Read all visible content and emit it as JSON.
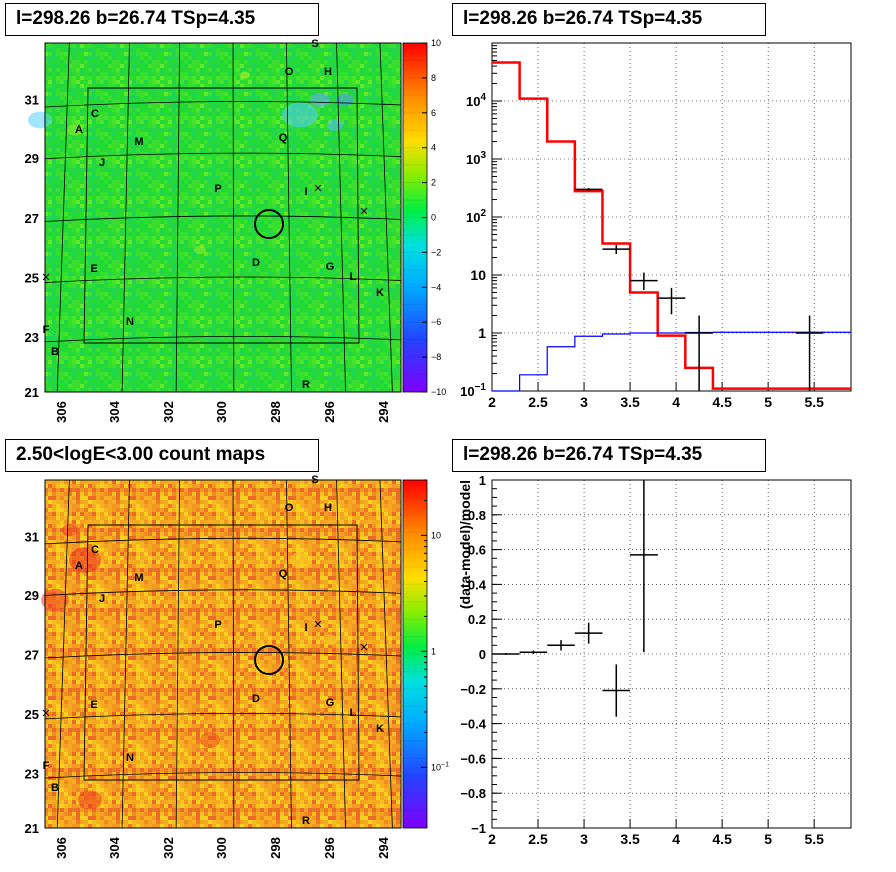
{
  "panels": {
    "tl_title": "l=298.26 b=26.74 TSp=4.35",
    "tr_title": "l=298.26 b=26.74 TSp=4.35",
    "bl_title": "2.50<logE<3.00 count maps",
    "br_title": "l=298.26 b=26.74 TSp=4.35"
  },
  "chart_data": [
    {
      "type": "heatmap",
      "panel": "top-left",
      "title": "l=298.26 b=26.74 TSp=4.35",
      "x_ticks": [
        "306",
        "304",
        "302",
        "300",
        "298",
        "296",
        "294"
      ],
      "y_ticks": [
        "31",
        "29",
        "27",
        "25",
        "23",
        "21"
      ],
      "colorbar_ticks": [
        "10",
        "8",
        "6",
        "4",
        "2",
        "0",
        "−2",
        "−4",
        "−6",
        "−8",
        "−10"
      ],
      "colorbar_range": [
        -10,
        10
      ],
      "source_labels": [
        "S",
        "O",
        "H",
        "C",
        "A",
        "M",
        "Q",
        "J",
        "P",
        "I",
        "D",
        "G",
        "E",
        "L",
        "K",
        "N",
        "F",
        "B",
        "R"
      ],
      "colors": {
        "background": "#22dd2c",
        "low": "#4444ff",
        "high": "#ff2222"
      }
    },
    {
      "type": "line",
      "panel": "top-right",
      "title": "l=298.26 b=26.74 TSp=4.35",
      "x_ticks": [
        "2",
        "2.5",
        "3",
        "3.5",
        "4",
        "4.5",
        "5",
        "5.5"
      ],
      "y_ticks": [
        "10",
        "1"
      ],
      "y_pow_ticks": [
        {
          "base": "10",
          "exp": "4"
        },
        {
          "base": "10",
          "exp": "3"
        },
        {
          "base": "10",
          "exp": "2"
        },
        {
          "base": "10",
          "exp": "−1"
        }
      ],
      "xlim": [
        2,
        5.9
      ],
      "ylim": [
        0.1,
        100000
      ],
      "y_scale": "log",
      "grid": true,
      "series": [
        {
          "color": "#ff0000",
          "type": "step",
          "edges": [
            2.0,
            2.3,
            2.6,
            2.9,
            3.2,
            3.5,
            3.8,
            4.1,
            4.4,
            5.9
          ],
          "values": [
            46000,
            11000,
            2000,
            280,
            35,
            5,
            0.9,
            0.25,
            0.11
          ]
        },
        {
          "color": "#0000ff",
          "type": "step",
          "edges": [
            2.0,
            2.3,
            2.6,
            2.9,
            3.2,
            3.5,
            3.8,
            4.1,
            4.4,
            5.9
          ],
          "values": [
            0.08,
            0.19,
            0.58,
            0.88,
            0.96,
            1.0,
            1.0,
            1.02,
            1.03
          ]
        },
        {
          "color": "#000000",
          "type": "errorbar",
          "points": [
            {
              "x": 3.05,
              "y": 300,
              "xerr": 0.15,
              "ylo": 285,
              "yhi": 315
            },
            {
              "x": 3.35,
              "y": 28,
              "xerr": 0.15,
              "ylo": 23,
              "yhi": 33
            },
            {
              "x": 3.65,
              "y": 8,
              "xerr": 0.15,
              "ylo": 5.5,
              "yhi": 11
            },
            {
              "x": 3.95,
              "y": 4,
              "xerr": 0.15,
              "ylo": 2.1,
              "yhi": 6
            },
            {
              "x": 4.25,
              "y": 1,
              "xerr": 0.15,
              "ylo": 0.1,
              "yhi": 2
            },
            {
              "x": 5.45,
              "y": 1,
              "xerr": 0.15,
              "ylo": 0.1,
              "yhi": 2
            }
          ]
        }
      ]
    },
    {
      "type": "heatmap",
      "panel": "bottom-left",
      "title": "2.50<logE<3.00 count maps",
      "x_ticks": [
        "306",
        "304",
        "302",
        "300",
        "298",
        "296",
        "294"
      ],
      "y_ticks": [
        "31",
        "29",
        "27",
        "25",
        "23",
        "21"
      ],
      "colorbar_ticks": [
        "10",
        "1"
      ],
      "colorbar_pow_tick": {
        "base": "10",
        "exp": "−1"
      },
      "colorbar_range": [
        0.03,
        30
      ],
      "colorbar_scale": "log",
      "source_labels": [
        "S",
        "O",
        "H",
        "C",
        "A",
        "M",
        "Q",
        "J",
        "P",
        "I",
        "D",
        "G",
        "E",
        "L",
        "K",
        "N",
        "F",
        "B",
        "R"
      ],
      "colors": {
        "background": "#f5a020",
        "low": "#ffee00",
        "high": "#ff3322"
      }
    },
    {
      "type": "scatter",
      "panel": "bottom-right",
      "title": "l=298.26 b=26.74 TSp=4.35",
      "ylabel": "(data-model)/model",
      "x_ticks": [
        "2",
        "2.5",
        "3",
        "3.5",
        "4",
        "4.5",
        "5",
        "5.5"
      ],
      "y_ticks": [
        "1",
        "0.8",
        "0.6",
        "0.4",
        "0.2",
        "0",
        "−0.2",
        "−0.4",
        "−0.6",
        "−0.8",
        "−1"
      ],
      "xlim": [
        2,
        5.9
      ],
      "ylim": [
        -1,
        1
      ],
      "grid": true,
      "series": [
        {
          "color": "#000000",
          "type": "errorbar",
          "points": [
            {
              "x": 2.15,
              "y": 0.0,
              "xerr": 0.15,
              "ylo": -0.005,
              "yhi": 0.005
            },
            {
              "x": 2.45,
              "y": 0.01,
              "xerr": 0.15,
              "ylo": 0.0,
              "yhi": 0.02
            },
            {
              "x": 2.75,
              "y": 0.05,
              "xerr": 0.15,
              "ylo": 0.02,
              "yhi": 0.08
            },
            {
              "x": 3.05,
              "y": 0.12,
              "xerr": 0.15,
              "ylo": 0.06,
              "yhi": 0.18
            },
            {
              "x": 3.35,
              "y": -0.21,
              "xerr": 0.15,
              "ylo": -0.36,
              "yhi": -0.06
            },
            {
              "x": 3.65,
              "y": 0.57,
              "xerr": 0.0,
              "ylo": 0.01,
              "yhi": 1.0
            }
          ]
        }
      ]
    }
  ]
}
